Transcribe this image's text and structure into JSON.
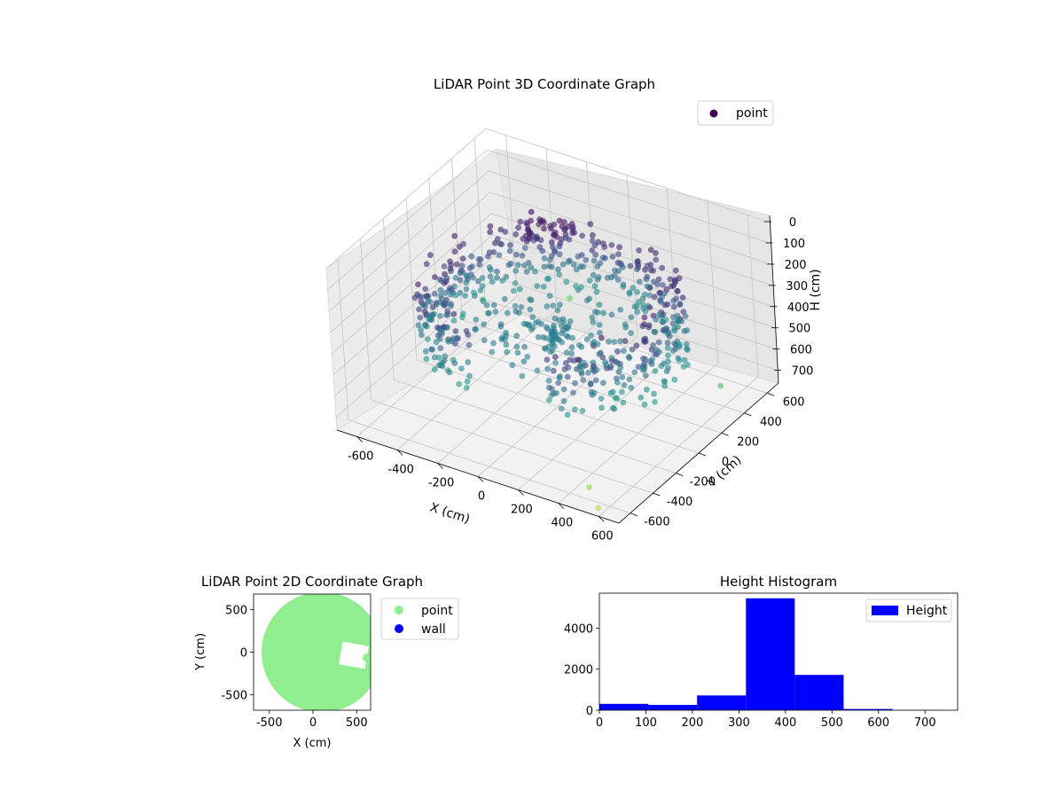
{
  "chart_data": [
    {
      "type": "scatter",
      "title": "LiDAR Point 3D Coordinate Graph",
      "xlabel": "X (cm)",
      "ylabel": "Y (cm)",
      "zlabel": "H (cm)",
      "xlim": [
        -700,
        700
      ],
      "ylim": [
        -700,
        700
      ],
      "zlim": [
        760,
        0
      ],
      "x_ticks": [
        -600,
        -400,
        -200,
        0,
        200,
        400,
        600
      ],
      "y_ticks": [
        -600,
        -400,
        -200,
        0,
        200,
        400,
        600
      ],
      "z_ticks": [
        0,
        100,
        200,
        300,
        400,
        500,
        600,
        700
      ],
      "legend": {
        "position": "top-right",
        "entries": [
          "point"
        ]
      },
      "colormap": "viridis",
      "series": [
        {
          "name": "point",
          "color": "#440154",
          "description_values": {
            "ring_radius_range": [
              450,
              650
            ],
            "ring_height_range": [
              200,
              500
            ],
            "outliers": [
              {
                "x": 500,
                "y": -600,
                "h": 700
              },
              {
                "x": 600,
                "y": -700,
                "h": 720
              },
              {
                "x": -300,
                "y": 650,
                "h": 650
              },
              {
                "x": 650,
                "y": 300,
                "h": 600
              }
            ]
          }
        }
      ],
      "grid": true
    },
    {
      "type": "scatter",
      "title": "LiDAR Point 2D Coordinate Graph",
      "xlabel": "X (cm)",
      "ylabel": "Y (cm)",
      "xlim": [
        -680,
        660
      ],
      "ylim": [
        -680,
        680
      ],
      "x_ticks": [
        -500,
        0,
        500
      ],
      "y_ticks": [
        -500,
        0,
        500
      ],
      "legend": {
        "position": "outside-right",
        "entries": [
          "point",
          "wall"
        ]
      },
      "series": [
        {
          "name": "point",
          "color": "#90ee90",
          "shape": "disk",
          "radius": 600,
          "center": [
            0,
            0
          ]
        },
        {
          "name": "wall",
          "color": "#0000ff",
          "values": []
        }
      ]
    },
    {
      "type": "bar",
      "title": "Height Histogram",
      "xlabel": "",
      "ylabel": "",
      "xlim": [
        0,
        770
      ],
      "ylim": [
        0,
        5700
      ],
      "x_ticks": [
        0,
        100,
        200,
        300,
        400,
        500,
        600,
        700
      ],
      "y_ticks": [
        0,
        2000,
        4000
      ],
      "legend": {
        "position": "top-right",
        "entries": [
          "Height"
        ]
      },
      "series": [
        {
          "name": "Height",
          "color": "#0000ff",
          "bins": [
            0,
            105,
            210,
            315,
            420,
            525,
            630,
            735
          ],
          "values": [
            310,
            260,
            720,
            5450,
            1720,
            60,
            8
          ]
        }
      ]
    }
  ]
}
